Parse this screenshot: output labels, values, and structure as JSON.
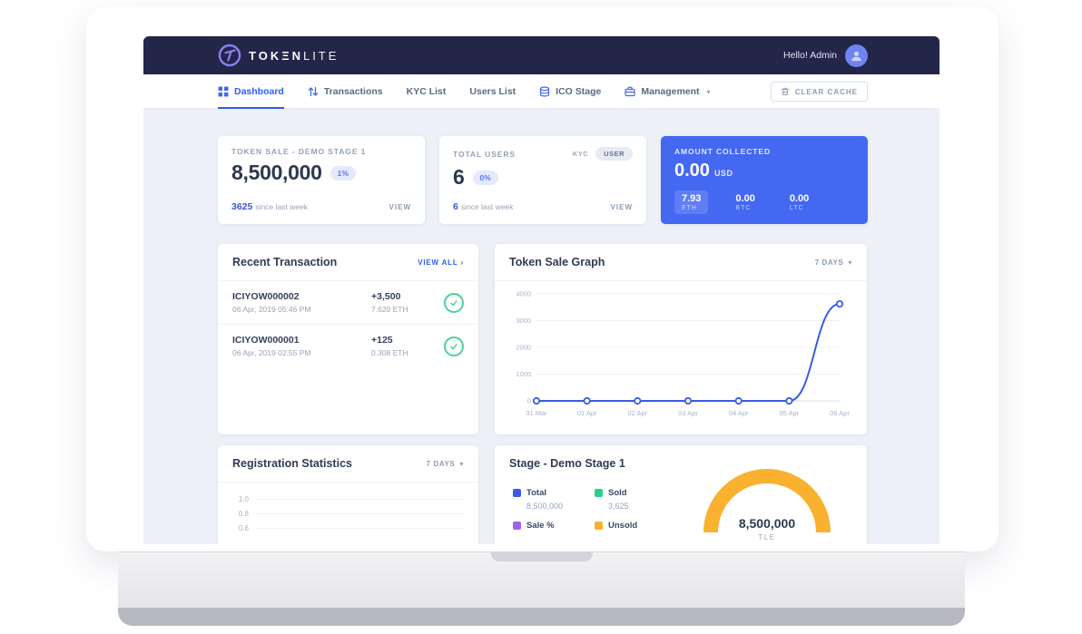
{
  "topbar": {
    "logo_bold": "TOKΞN",
    "logo_light": "LITE",
    "greeting": "Hello! Admin"
  },
  "nav": {
    "items": [
      {
        "label": "Dashboard",
        "active": true
      },
      {
        "label": "Transactions",
        "active": false
      },
      {
        "label": "KYC List",
        "active": false
      },
      {
        "label": "Users List",
        "active": false
      },
      {
        "label": "ICO Stage",
        "active": false
      },
      {
        "label": "Management",
        "active": false
      }
    ],
    "clear_cache": "CLEAR CACHE"
  },
  "stats": {
    "token_sale": {
      "label": "TOKEN SALE - DEMO STAGE 1",
      "value": "8,500,000",
      "badge": "1%",
      "delta_value": "3625",
      "delta_text": "since last week",
      "view": "VIEW"
    },
    "total_users": {
      "label": "TOTAL USERS",
      "tab_kyc": "KYC",
      "tab_user": "USER",
      "value": "6",
      "badge": "0%",
      "delta_value": "6",
      "delta_text": "since last week",
      "view": "VIEW"
    },
    "amount_collected": {
      "label": "AMOUNT COLLECTED",
      "value": "0.00",
      "currency": "USD",
      "accent": "#4468f2",
      "breakdown": [
        {
          "value": "7.93",
          "unit": "ETH"
        },
        {
          "value": "0.00",
          "unit": "BTC"
        },
        {
          "value": "0.00",
          "unit": "LTC"
        }
      ]
    }
  },
  "transactions": {
    "title": "Recent Transaction",
    "view_all": "VIEW ALL",
    "rows": [
      {
        "tx_id": "ICIYOW000002",
        "date": "06 Apr, 2019 05:46 PM",
        "amount": "+3,500",
        "crypto": "7.620 ETH"
      },
      {
        "tx_id": "ICIYOW000001",
        "date": "06 Apr, 2019 02:55 PM",
        "amount": "+125",
        "crypto": "0.308 ETH"
      }
    ]
  },
  "chart_data": [
    {
      "id": "token-sale-graph",
      "type": "line",
      "title": "Token Sale Graph",
      "range_label": "7 DAYS",
      "x": [
        "31 Mar",
        "01 Apr",
        "02 Apr",
        "03 Apr",
        "04 Apr",
        "05 Apr",
        "06 Apr"
      ],
      "values": [
        0,
        0,
        0,
        0,
        0,
        0,
        3625
      ],
      "ylim": [
        0,
        4000
      ],
      "yticks": [
        0,
        1000,
        2000,
        3000,
        4000
      ],
      "line_color": "#3a5be8",
      "grid": true,
      "legend_position": "none"
    },
    {
      "id": "registration-statistics",
      "type": "line",
      "title": "Registration Statistics",
      "range_label": "7 DAYS",
      "visible_yticks": [
        "1.0",
        "0.8",
        "0.6"
      ]
    },
    {
      "id": "stage-donut",
      "type": "donut",
      "title": "Stage - Demo Stage 1",
      "center_value": "8,500,000",
      "center_unit": "TLE",
      "arc_color": "#f9b12f",
      "legend": [
        {
          "label": "Total",
          "value": "8,500,000",
          "color": "#3a5be8"
        },
        {
          "label": "Sold",
          "value": "3,625",
          "color": "#2dcd8c"
        },
        {
          "label": "Sale %",
          "value": "",
          "color": "#9a63f1"
        },
        {
          "label": "Unsold",
          "value": "",
          "color": "#f9b12f"
        }
      ]
    }
  ]
}
